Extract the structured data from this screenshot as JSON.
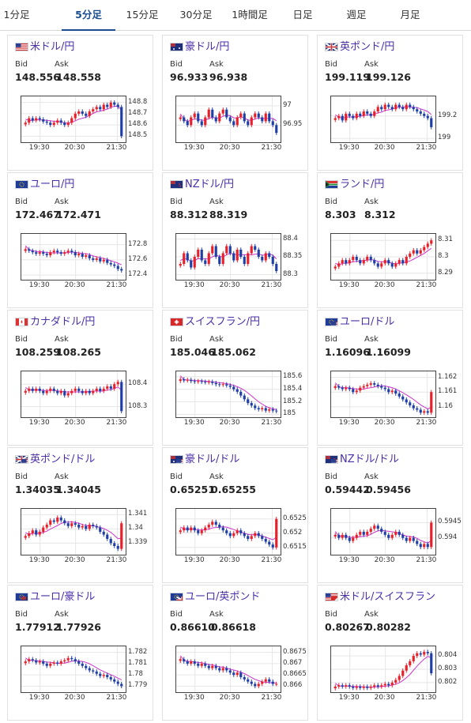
{
  "tabs": [
    {
      "label": "1分足",
      "active": false
    },
    {
      "label": "5分足",
      "active": true
    },
    {
      "label": "15分足",
      "active": false
    },
    {
      "label": "30分足",
      "active": false
    },
    {
      "label": "1時間足",
      "active": false
    },
    {
      "label": "日足",
      "active": false
    },
    {
      "label": "週足",
      "active": false
    },
    {
      "label": "月足",
      "active": false
    }
  ],
  "bid_label": "Bid",
  "ask_label": "Ask",
  "colors": {
    "up": "#e8202a",
    "down": "#1f3fa6",
    "ma": "#cc33cc",
    "title": "#4a2fa8"
  },
  "cards": [
    {
      "title": "米ドル/円",
      "flag": "us-flag-icon",
      "bid": "148.556",
      "ask": "148.558",
      "chart_data": {
        "type": "candlestick",
        "x_ticks": [
          "19:30",
          "20:30",
          "21:30"
        ],
        "y_ticks": [
          "148.8",
          "148.7",
          "148.6",
          "148.5"
        ],
        "ylim": [
          148.46,
          148.84
        ],
        "series": [
          148.62,
          148.66,
          148.64,
          148.66,
          148.65,
          148.63,
          148.62,
          148.6,
          148.62,
          148.64,
          148.62,
          148.6,
          148.62,
          148.66,
          148.7,
          148.72,
          148.7,
          148.68,
          148.72,
          148.74,
          148.76,
          148.74,
          148.78,
          148.76,
          148.8,
          148.78,
          148.76,
          148.5
        ]
      }
    },
    {
      "title": "豪ドル/円",
      "flag": "au-flag-icon",
      "bid": "96.933",
      "ask": "96.938",
      "chart_data": {
        "type": "candlestick",
        "x_ticks": [
          "19:30",
          "20:30",
          "21:30"
        ],
        "y_ticks": [
          "97",
          "96.95"
        ],
        "ylim": [
          96.91,
          97.02
        ],
        "series": [
          96.97,
          96.96,
          96.95,
          96.97,
          96.98,
          96.96,
          96.95,
          96.97,
          96.99,
          96.97,
          96.96,
          96.98,
          96.99,
          96.97,
          96.96,
          96.95,
          96.97,
          96.98,
          96.96,
          96.95,
          96.97,
          96.98,
          96.97,
          96.96,
          96.98,
          96.96,
          96.95,
          96.93
        ]
      }
    },
    {
      "title": "英ポンド/円",
      "flag": "gb-flag-icon",
      "bid": "199.119",
      "ask": "199.126",
      "chart_data": {
        "type": "candlestick",
        "x_ticks": [
          "19:30",
          "20:30",
          "21:30"
        ],
        "y_ticks": [
          "199.2",
          "199"
        ],
        "ylim": [
          198.98,
          199.36
        ],
        "series": [
          199.18,
          199.2,
          199.16,
          199.22,
          199.2,
          199.18,
          199.22,
          199.2,
          199.24,
          199.22,
          199.2,
          199.24,
          199.28,
          199.26,
          199.3,
          199.28,
          199.26,
          199.3,
          199.28,
          199.26,
          199.3,
          199.28,
          199.26,
          199.24,
          199.22,
          199.2,
          199.18,
          199.1
        ]
      }
    },
    {
      "title": "ユーロ/円",
      "flag": "eu-flag-icon",
      "bid": "172.467",
      "ask": "172.471",
      "chart_data": {
        "type": "candlestick",
        "x_ticks": [
          "19:30",
          "20:30",
          "21:30"
        ],
        "y_ticks": [
          "172.8",
          "172.6",
          "172.4"
        ],
        "ylim": [
          172.36,
          172.92
        ],
        "series": [
          172.74,
          172.72,
          172.7,
          172.68,
          172.7,
          172.68,
          172.66,
          172.7,
          172.72,
          172.7,
          172.68,
          172.7,
          172.72,
          172.7,
          172.66,
          172.68,
          172.64,
          172.66,
          172.62,
          172.6,
          172.62,
          172.58,
          172.6,
          172.56,
          172.54,
          172.52,
          172.48,
          172.46
        ]
      }
    },
    {
      "title": "NZドル/円",
      "flag": "nz-flag-icon",
      "bid": "88.312",
      "ask": "88.319",
      "chart_data": {
        "type": "candlestick",
        "x_ticks": [
          "19:30",
          "20:30",
          "21:30"
        ],
        "y_ticks": [
          "88.4",
          "88.35",
          "88.3"
        ],
        "ylim": [
          88.29,
          88.41
        ],
        "series": [
          88.33,
          88.36,
          88.34,
          88.32,
          88.35,
          88.37,
          88.34,
          88.33,
          88.36,
          88.38,
          88.35,
          88.33,
          88.36,
          88.38,
          88.36,
          88.34,
          88.37,
          88.35,
          88.33,
          88.36,
          88.38,
          88.37,
          88.35,
          88.34,
          88.36,
          88.35,
          88.33,
          88.31
        ]
      }
    },
    {
      "title": "ランド/円",
      "flag": "za-flag-icon",
      "bid": "8.303",
      "ask": "8.312",
      "chart_data": {
        "type": "candlestick",
        "x_ticks": [
          "19:30",
          "20:30",
          "21:30"
        ],
        "y_ticks": [
          "8.31",
          "8.3",
          "8.29"
        ],
        "ylim": [
          8.287,
          8.313
        ],
        "series": [
          8.294,
          8.296,
          8.298,
          8.296,
          8.298,
          8.3,
          8.298,
          8.296,
          8.298,
          8.3,
          8.298,
          8.296,
          8.294,
          8.296,
          8.298,
          8.296,
          8.294,
          8.296,
          8.298,
          8.296,
          8.3,
          8.302,
          8.304,
          8.302,
          8.304,
          8.306,
          8.308,
          8.31
        ]
      }
    },
    {
      "title": "カナダドル/円",
      "flag": "ca-flag-icon",
      "bid": "108.259",
      "ask": "108.265",
      "chart_data": {
        "type": "candlestick",
        "x_ticks": [
          "19:30",
          "20:30",
          "21:30"
        ],
        "y_ticks": [
          "108.4",
          "108.3"
        ],
        "ylim": [
          108.26,
          108.45
        ],
        "series": [
          108.37,
          108.38,
          108.37,
          108.38,
          108.37,
          108.36,
          108.37,
          108.38,
          108.37,
          108.36,
          108.37,
          108.35,
          108.36,
          108.37,
          108.38,
          108.37,
          108.36,
          108.37,
          108.36,
          108.37,
          108.38,
          108.37,
          108.38,
          108.39,
          108.38,
          108.4,
          108.41,
          108.28
        ]
      }
    },
    {
      "title": "スイスフラン/円",
      "flag": "ch-flag-icon",
      "bid": "185.046",
      "ask": "185.062",
      "chart_data": {
        "type": "candlestick",
        "x_ticks": [
          "19:30",
          "20:30",
          "21:30"
        ],
        "y_ticks": [
          "185.6",
          "185.4",
          "185.2",
          "185"
        ],
        "ylim": [
          184.98,
          185.66
        ],
        "series": [
          185.56,
          185.54,
          185.55,
          185.53,
          185.52,
          185.53,
          185.52,
          185.51,
          185.52,
          185.5,
          185.48,
          185.47,
          185.48,
          185.46,
          185.44,
          185.4,
          185.36,
          185.3,
          185.24,
          185.18,
          185.14,
          185.1,
          185.08,
          185.1,
          185.06,
          185.08,
          185.06,
          185.05
        ]
      }
    },
    {
      "title": "ユーロ/ドル",
      "flag": "eu-us-flag-icon",
      "bid": "1.16096",
      "ask": "1.16099",
      "chart_data": {
        "type": "candlestick",
        "x_ticks": [
          "19:30",
          "20:30",
          "21:30"
        ],
        "y_ticks": [
          "1.162",
          "1.161",
          "1.16"
        ],
        "ylim": [
          1.1594,
          1.1623
        ],
        "series": [
          1.1614,
          1.1613,
          1.1612,
          1.1613,
          1.1612,
          1.161,
          1.1611,
          1.1613,
          1.1614,
          1.1615,
          1.1616,
          1.1615,
          1.1614,
          1.1613,
          1.1612,
          1.161,
          1.1611,
          1.1609,
          1.1607,
          1.1605,
          1.1603,
          1.1601,
          1.1599,
          1.1598,
          1.1596,
          1.1597,
          1.1596,
          1.161
        ]
      }
    },
    {
      "title": "英ポンド/ドル",
      "flag": "gb-us-flag-icon",
      "bid": "1.34035",
      "ask": "1.34045",
      "chart_data": {
        "type": "candlestick",
        "x_ticks": [
          "19:30",
          "20:30",
          "21:30"
        ],
        "y_ticks": [
          "1.341",
          "1.34",
          "1.339"
        ],
        "ylim": [
          1.3383,
          1.3413
        ],
        "series": [
          1.3395,
          1.3397,
          1.3399,
          1.3396,
          1.3398,
          1.3401,
          1.3403,
          1.3406,
          1.3405,
          1.3408,
          1.3406,
          1.3404,
          1.3402,
          1.3404,
          1.3403,
          1.3401,
          1.3402,
          1.34,
          1.3403,
          1.3402,
          1.3401,
          1.3398,
          1.3396,
          1.3393,
          1.339,
          1.3388,
          1.3386,
          1.3404
        ]
      }
    },
    {
      "title": "豪ドル/ドル",
      "flag": "au-us-flag-icon",
      "bid": "0.65251",
      "ask": "0.65255",
      "chart_data": {
        "type": "candlestick",
        "x_ticks": [
          "19:30",
          "20:30",
          "21:30"
        ],
        "y_ticks": [
          "0.6525",
          "0.652",
          "0.6515"
        ],
        "ylim": [
          0.6513,
          0.6528
        ],
        "series": [
          0.6521,
          0.6522,
          0.6521,
          0.6522,
          0.6521,
          0.652,
          0.6521,
          0.6522,
          0.6523,
          0.6524,
          0.6523,
          0.6522,
          0.6521,
          0.652,
          0.6519,
          0.652,
          0.6521,
          0.652,
          0.6519,
          0.6518,
          0.6519,
          0.652,
          0.6519,
          0.6518,
          0.6517,
          0.6516,
          0.6515,
          0.6525
        ]
      }
    },
    {
      "title": "NZドル/ドル",
      "flag": "nz-us-flag-icon",
      "bid": "0.59442",
      "ask": "0.59456",
      "chart_data": {
        "type": "candlestick",
        "x_ticks": [
          "19:30",
          "20:30",
          "21:30"
        ],
        "y_ticks": [
          "0.5945",
          "0.594"
        ],
        "ylim": [
          0.5935,
          0.5949
        ],
        "series": [
          0.5941,
          0.594,
          0.5941,
          0.594,
          0.5939,
          0.594,
          0.5941,
          0.5942,
          0.5941,
          0.5942,
          0.5943,
          0.5944,
          0.5943,
          0.5942,
          0.5941,
          0.594,
          0.5941,
          0.5942,
          0.5941,
          0.594,
          0.5939,
          0.594,
          0.5939,
          0.5938,
          0.5937,
          0.5938,
          0.5937,
          0.5945
        ]
      }
    },
    {
      "title": "ユーロ/豪ドル",
      "flag": "eu-au-flag-icon",
      "bid": "1.77912",
      "ask": "1.77926",
      "chart_data": {
        "type": "candlestick",
        "x_ticks": [
          "19:30",
          "20:30",
          "21:30"
        ],
        "y_ticks": [
          "1.782",
          "1.781",
          "1.78",
          "1.779"
        ],
        "ylim": [
          1.7786,
          1.7824
        ],
        "series": [
          1.7812,
          1.7814,
          1.7813,
          1.7811,
          1.7812,
          1.781,
          1.7808,
          1.781,
          1.7811,
          1.781,
          1.7812,
          1.7813,
          1.7815,
          1.7814,
          1.7812,
          1.781,
          1.7808,
          1.7806,
          1.7804,
          1.7803,
          1.7801,
          1.7799,
          1.78,
          1.7798,
          1.7796,
          1.7794,
          1.7792,
          1.779
        ]
      }
    },
    {
      "title": "ユーロ/英ポンド",
      "flag": "eu-gb-flag-icon",
      "bid": "0.86610",
      "ask": "0.86618",
      "chart_data": {
        "type": "candlestick",
        "x_ticks": [
          "19:30",
          "20:30",
          "21:30"
        ],
        "y_ticks": [
          "0.8675",
          "0.867",
          "0.8665",
          "0.866"
        ],
        "ylim": [
          0.8658,
          0.8677
        ],
        "series": [
          0.8672,
          0.8671,
          0.867,
          0.8671,
          0.867,
          0.8669,
          0.867,
          0.8669,
          0.8668,
          0.8669,
          0.8668,
          0.8667,
          0.8668,
          0.8667,
          0.8666,
          0.8665,
          0.8666,
          0.8664,
          0.8663,
          0.8662,
          0.8661,
          0.866,
          0.8661,
          0.8662,
          0.8663,
          0.8662,
          0.8661,
          0.8661
        ]
      }
    },
    {
      "title": "米ドル/スイスフラン",
      "flag": "us-ch-flag-icon",
      "bid": "0.80267",
      "ask": "0.80282",
      "chart_data": {
        "type": "candlestick",
        "x_ticks": [
          "19:30",
          "20:30",
          "21:30"
        ],
        "y_ticks": [
          "0.804",
          "0.803",
          "0.802"
        ],
        "ylim": [
          0.8014,
          0.8046
        ],
        "series": [
          0.8017,
          0.8018,
          0.8017,
          0.8018,
          0.8017,
          0.8016,
          0.8017,
          0.8016,
          0.8017,
          0.8016,
          0.8017,
          0.8018,
          0.8017,
          0.8018,
          0.8019,
          0.8018,
          0.802,
          0.8022,
          0.8025,
          0.8029,
          0.8033,
          0.8036,
          0.804,
          0.8042,
          0.8041,
          0.8043,
          0.8042,
          0.8027
        ]
      }
    }
  ]
}
